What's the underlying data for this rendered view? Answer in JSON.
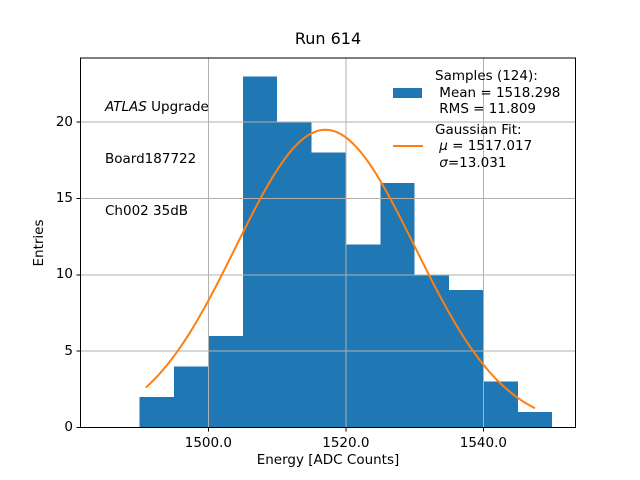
{
  "chart_data": {
    "type": "histogram",
    "title": "Run 614",
    "xlabel": "Energy [ADC Counts]",
    "ylabel": "Entries",
    "bins": {
      "edges": [
        1490,
        1495,
        1500,
        1505,
        1510,
        1515,
        1520,
        1525,
        1530,
        1535,
        1540,
        1545,
        1550
      ],
      "counts": [
        2,
        4,
        6,
        23,
        20,
        18,
        12,
        16,
        10,
        9,
        3,
        1
      ]
    },
    "total_entries": 124,
    "stats": {
      "mean": 1518.298,
      "rms": 11.809
    },
    "fit": {
      "type": "gaussian",
      "mu": 1517.017,
      "sigma": 13.031,
      "peak": 19.5,
      "x_start": 1491.0,
      "x_end": 1547.4
    },
    "xlim": [
      1481.4,
      1553.4
    ],
    "ylim": [
      0,
      24.2
    ],
    "x_ticks": {
      "values": [
        1500,
        1520,
        1540
      ],
      "labels": [
        "1500.0",
        "1520.0",
        "1540.0"
      ]
    },
    "y_ticks": {
      "values": [
        0,
        5,
        10,
        15,
        20
      ],
      "labels": [
        "0",
        "5",
        "10",
        "15",
        "20"
      ]
    },
    "grid": true,
    "legend_position": "upper right",
    "colors": {
      "histogram": "#1f77b4",
      "fit_line": "#ff7f0e",
      "grid": "#b0b0b0",
      "frame": "#000000",
      "background": "#ffffff"
    }
  },
  "annotation_block": {
    "line1_italic": "ATLAS",
    "line1_regular": " Upgrade",
    "line2": "Board187722",
    "line3": "Ch002 35dB"
  },
  "legend": {
    "samples_header": "Samples (124):",
    "mean_line": " Mean = 1518.298",
    "rms_line": " RMS = 11.809",
    "gaussian_header": "Gaussian Fit:",
    "mu_symbol": " μ",
    "mu_value": " = 1517.017",
    "sigma_symbol": " σ",
    "sigma_value": "=13.031"
  }
}
